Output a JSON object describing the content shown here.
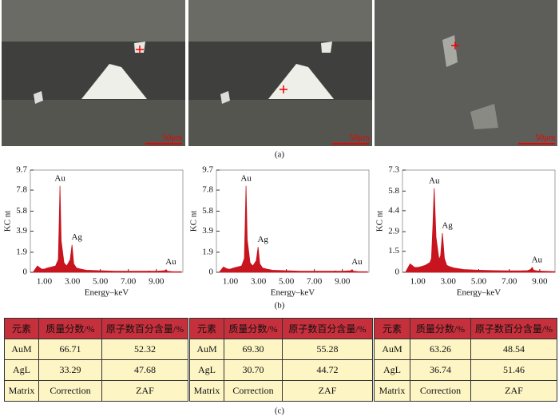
{
  "figure": {
    "panel_labels": [
      "(a)",
      "(b)",
      "(c)"
    ],
    "images": [
      {
        "scale_bar": "50μm"
      },
      {
        "scale_bar": "50μm"
      },
      {
        "scale_bar": "50μm"
      }
    ]
  },
  "chart_data": [
    {
      "type": "area",
      "x_label": "Energy–keV",
      "y_label": "KC nt",
      "color": "#c8141e",
      "xlim": [
        0,
        10.9
      ],
      "ylim": [
        0,
        9.7
      ],
      "xticks": [
        {
          "value": 1,
          "label": "1.00"
        },
        {
          "value": 3,
          "label": "3.00"
        },
        {
          "value": 5,
          "label": "5.00"
        },
        {
          "value": 7,
          "label": "7.00"
        },
        {
          "value": 9,
          "label": "9.00"
        }
      ],
      "yticks": [
        0,
        1.9,
        3.9,
        5.8,
        7.8,
        9.7
      ],
      "x": [
        0.2,
        0.5,
        0.8,
        1.0,
        1.2,
        1.5,
        1.8,
        2.0,
        2.05,
        2.12,
        2.2,
        2.4,
        2.6,
        2.85,
        2.98,
        3.1,
        3.3,
        3.6,
        4.0,
        5.0,
        6.0,
        7.0,
        8.0,
        8.4,
        8.5,
        8.6,
        9.0,
        9.6,
        9.7,
        9.8,
        10.2,
        10.8
      ],
      "values": [
        0,
        0.6,
        0.3,
        0.3,
        0.4,
        0.5,
        0.6,
        1.2,
        4.0,
        8.2,
        3.0,
        0.9,
        0.6,
        1.2,
        2.6,
        0.8,
        0.4,
        0.3,
        0.2,
        0.15,
        0.1,
        0.1,
        0.1,
        0.1,
        0.12,
        0.1,
        0.1,
        0.15,
        0.25,
        0.1,
        0.05,
        0.05
      ],
      "annotations": [
        "Au",
        "Ag",
        "Au"
      ]
    },
    {
      "type": "area",
      "x_label": "Energy–keV",
      "y_label": "KC nt",
      "color": "#c8141e",
      "xlim": [
        0,
        10.9
      ],
      "ylim": [
        0,
        9.7
      ],
      "xticks": [
        {
          "value": 1,
          "label": "1.00"
        },
        {
          "value": 3,
          "label": "3.00"
        },
        {
          "value": 5,
          "label": "5.00"
        },
        {
          "value": 7,
          "label": "7.00"
        },
        {
          "value": 9,
          "label": "9.00"
        }
      ],
      "yticks": [
        0,
        1.9,
        3.9,
        5.8,
        7.8,
        9.7
      ],
      "x": [
        0.2,
        0.5,
        0.8,
        1.0,
        1.2,
        1.5,
        1.8,
        2.0,
        2.05,
        2.12,
        2.2,
        2.4,
        2.6,
        2.85,
        2.98,
        3.1,
        3.3,
        3.6,
        4.0,
        5.0,
        6.0,
        7.0,
        8.0,
        8.4,
        8.5,
        8.6,
        9.0,
        9.6,
        9.7,
        9.8,
        10.2,
        10.8
      ],
      "values": [
        0,
        0.5,
        0.3,
        0.3,
        0.4,
        0.5,
        0.6,
        1.3,
        4.2,
        8.2,
        3.1,
        0.9,
        0.6,
        1.1,
        2.4,
        0.8,
        0.4,
        0.3,
        0.2,
        0.15,
        0.1,
        0.1,
        0.1,
        0.1,
        0.12,
        0.1,
        0.1,
        0.15,
        0.25,
        0.1,
        0.05,
        0.05
      ],
      "annotations": [
        "Au",
        "Ag",
        "Au"
      ]
    },
    {
      "type": "area",
      "x_label": "Energy–keV",
      "y_label": "KC nt",
      "color": "#c8141e",
      "xlim": [
        0,
        10
      ],
      "ylim": [
        0,
        7.3
      ],
      "xticks": [
        {
          "value": 1,
          "label": "1.00"
        },
        {
          "value": 3,
          "label": "3.00"
        },
        {
          "value": 5,
          "label": "5.00"
        },
        {
          "value": 7,
          "label": "7.00"
        },
        {
          "value": 9,
          "label": "9.00"
        }
      ],
      "yticks": [
        0,
        1.5,
        2.9,
        4.4,
        5.8,
        7.3
      ],
      "x": [
        0.2,
        0.5,
        0.8,
        1.0,
        1.2,
        1.5,
        1.8,
        1.9,
        2.0,
        2.08,
        2.2,
        2.4,
        2.5,
        2.62,
        2.75,
        2.9,
        3.1,
        3.4,
        4.0,
        5.0,
        6.0,
        7.0,
        7.8,
        8.2,
        8.4,
        8.5,
        8.6,
        8.8,
        9.2,
        10.0
      ],
      "values": [
        0,
        0.6,
        0.35,
        0.35,
        0.4,
        0.5,
        0.7,
        1.0,
        3.5,
        6.0,
        2.5,
        0.9,
        1.2,
        2.8,
        1.0,
        0.5,
        0.4,
        0.3,
        0.2,
        0.15,
        0.12,
        0.1,
        0.1,
        0.12,
        0.2,
        0.35,
        0.15,
        0.1,
        0.08,
        0.05
      ],
      "annotations": [
        "Au",
        "Ag",
        "Au"
      ]
    }
  ],
  "tables": [
    {
      "header": [
        "元素",
        "质量分数/%",
        "原子数百分含量/%"
      ],
      "rows": [
        [
          "AuM",
          "66.71",
          "52.32"
        ],
        [
          "AgL",
          "33.29",
          "47.68"
        ],
        [
          "Matrix",
          "Correction",
          "ZAF"
        ]
      ]
    },
    {
      "header": [
        "元素",
        "质量分数/%",
        "原子数百分含量/%"
      ],
      "rows": [
        [
          "AuM",
          "69.30",
          "55.28"
        ],
        [
          "AgL",
          "30.70",
          "44.72"
        ],
        [
          "Matrix",
          "Correction",
          "ZAF"
        ]
      ]
    },
    {
      "header": [
        "元素",
        "质量分数/%",
        "原子数百分含量/%"
      ],
      "rows": [
        [
          "AuM",
          "63.26",
          "48.54"
        ],
        [
          "AgL",
          "36.74",
          "51.46"
        ],
        [
          "Matrix",
          "Correction",
          "ZAF"
        ]
      ]
    }
  ]
}
